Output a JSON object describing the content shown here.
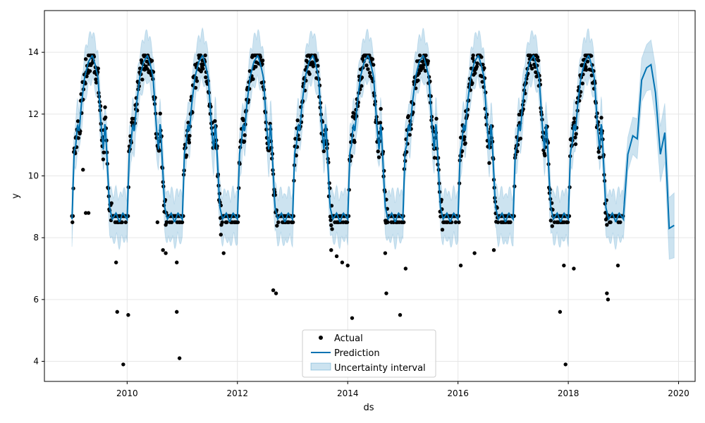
{
  "chart_data": {
    "type": "line",
    "xlabel": "ds",
    "ylabel": "y",
    "xlim": [
      2008.5,
      2020.3
    ],
    "ylim": [
      3.35,
      15.35
    ],
    "grid": true,
    "legend_position": "bottom-center",
    "x_ticks": [
      2010,
      2012,
      2014,
      2016,
      2018,
      2020
    ],
    "y_ticks": [
      4,
      6,
      8,
      10,
      12,
      14
    ],
    "legend": {
      "actual": "Actual",
      "prediction": "Prediction",
      "interval": "Uncertainty interval"
    },
    "colors": {
      "prediction": "#0072B2",
      "interval": "#0072B2",
      "actual": "#000000",
      "grid": "#e6e6e6"
    },
    "forecast_end": 2019.9,
    "history_end": 2019.0,
    "series": [
      {
        "name": "Prediction",
        "description_of_shape": "annual seasonal cycle",
        "annual_profile": [
          {
            "p": 0.0,
            "y": 8.6
          },
          {
            "p": 0.04,
            "y": 10.8
          },
          {
            "p": 0.07,
            "y": 11.0
          },
          {
            "p": 0.1,
            "y": 11.7
          },
          {
            "p": 0.13,
            "y": 11.4
          },
          {
            "p": 0.17,
            "y": 12.3
          },
          {
            "p": 0.23,
            "y": 13.2
          },
          {
            "p": 0.3,
            "y": 13.7
          },
          {
            "p": 0.37,
            "y": 13.9
          },
          {
            "p": 0.42,
            "y": 13.6
          },
          {
            "p": 0.47,
            "y": 13.2
          },
          {
            "p": 0.53,
            "y": 11.6
          },
          {
            "p": 0.57,
            "y": 10.8
          },
          {
            "p": 0.6,
            "y": 11.8
          },
          {
            "p": 0.64,
            "y": 10.4
          },
          {
            "p": 0.68,
            "y": 9.0
          },
          {
            "p": 0.73,
            "y": 8.6
          },
          {
            "p": 0.8,
            "y": 8.8
          },
          {
            "p": 0.86,
            "y": 8.5
          },
          {
            "p": 0.92,
            "y": 8.8
          },
          {
            "p": 1.0,
            "y": 8.6
          }
        ],
        "forecast_points": [
          {
            "x": 2019.0,
            "y": 8.7
          },
          {
            "x": 2019.08,
            "y": 10.7
          },
          {
            "x": 2019.17,
            "y": 11.3
          },
          {
            "x": 2019.25,
            "y": 11.2
          },
          {
            "x": 2019.33,
            "y": 13.1
          },
          {
            "x": 2019.42,
            "y": 13.5
          },
          {
            "x": 2019.5,
            "y": 13.6
          },
          {
            "x": 2019.58,
            "y": 12.7
          },
          {
            "x": 2019.67,
            "y": 10.7
          },
          {
            "x": 2019.75,
            "y": 11.4
          },
          {
            "x": 2019.83,
            "y": 8.3
          },
          {
            "x": 2019.92,
            "y": 8.4
          }
        ]
      }
    ],
    "outliers": [
      {
        "x": 2009.2,
        "y": 10.2
      },
      {
        "x": 2009.25,
        "y": 8.8
      },
      {
        "x": 2009.3,
        "y": 8.8
      },
      {
        "x": 2009.8,
        "y": 7.2
      },
      {
        "x": 2009.82,
        "y": 5.6
      },
      {
        "x": 2009.93,
        "y": 3.9
      },
      {
        "x": 2010.02,
        "y": 5.5
      },
      {
        "x": 2010.55,
        "y": 8.5
      },
      {
        "x": 2010.65,
        "y": 7.6
      },
      {
        "x": 2010.7,
        "y": 7.5
      },
      {
        "x": 2010.9,
        "y": 7.2
      },
      {
        "x": 2010.9,
        "y": 5.6
      },
      {
        "x": 2010.95,
        "y": 4.1
      },
      {
        "x": 2011.7,
        "y": 8.1
      },
      {
        "x": 2011.75,
        "y": 7.5
      },
      {
        "x": 2012.65,
        "y": 6.3
      },
      {
        "x": 2012.7,
        "y": 6.2
      },
      {
        "x": 2013.7,
        "y": 7.6
      },
      {
        "x": 2013.8,
        "y": 7.4
      },
      {
        "x": 2013.9,
        "y": 7.2
      },
      {
        "x": 2014.0,
        "y": 7.1
      },
      {
        "x": 2014.08,
        "y": 5.4
      },
      {
        "x": 2014.68,
        "y": 7.5
      },
      {
        "x": 2014.7,
        "y": 6.2
      },
      {
        "x": 2014.95,
        "y": 5.5
      },
      {
        "x": 2015.05,
        "y": 7.0
      },
      {
        "x": 2016.05,
        "y": 7.1
      },
      {
        "x": 2016.3,
        "y": 7.5
      },
      {
        "x": 2016.65,
        "y": 7.6
      },
      {
        "x": 2017.85,
        "y": 5.6
      },
      {
        "x": 2017.95,
        "y": 3.9
      },
      {
        "x": 2018.1,
        "y": 7.0
      },
      {
        "x": 2017.92,
        "y": 7.1
      },
      {
        "x": 2018.7,
        "y": 6.2
      },
      {
        "x": 2018.72,
        "y": 6.0
      },
      {
        "x": 2018.9,
        "y": 7.1
      }
    ]
  }
}
